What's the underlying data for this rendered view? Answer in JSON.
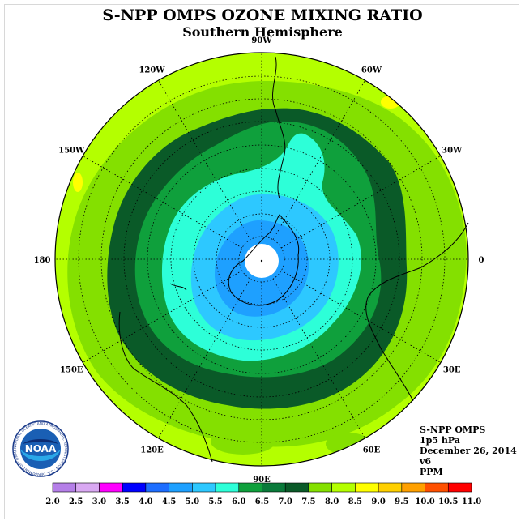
{
  "title": "S-NPP OMPS OZONE MIXING RATIO",
  "subtitle": "Southern Hemisphere",
  "info": {
    "instrument": "S-NPP OMPS",
    "level": "1p5 hPa",
    "date": "December 26, 2014",
    "version": "v6",
    "units": "PPM"
  },
  "logo": {
    "text": "NOAA",
    "ring_text": "NATIONAL OCEANIC AND ATMOSPHERIC ADMINISTRATION · U.S. DEPARTMENT OF COMMERCE"
  },
  "longitude_labels": [
    {
      "text": "90W",
      "angle": -90
    },
    {
      "text": "60W",
      "angle": -60
    },
    {
      "text": "30W",
      "angle": -30
    },
    {
      "text": "0",
      "angle": 0
    },
    {
      "text": "30E",
      "angle": 30
    },
    {
      "text": "60E",
      "angle": 60
    },
    {
      "text": "90E",
      "angle": 90
    },
    {
      "text": "120E",
      "angle": 120
    },
    {
      "text": "150E",
      "angle": 150
    },
    {
      "text": "180",
      "angle": 180
    },
    {
      "text": "150W",
      "angle": 210
    },
    {
      "text": "120W",
      "angle": 240
    }
  ],
  "colorbar": {
    "labels": [
      "2.0",
      "2.5",
      "3.0",
      "3.5",
      "4.0",
      "4.5",
      "5.0",
      "5.5",
      "6.0",
      "6.5",
      "7.0",
      "7.5",
      "8.0",
      "8.5",
      "9.0",
      "9.5",
      "10.0",
      "10.5",
      "11.0"
    ],
    "colors": [
      "#b57fe8",
      "#d9a8f2",
      "#ff00ff",
      "#0000ff",
      "#1e6eff",
      "#1ea0ff",
      "#2dc8ff",
      "#2dffd8",
      "#0fa03c",
      "#0a7a3a",
      "#0a5a28",
      "#84e000",
      "#b4ff00",
      "#ffff00",
      "#ffd000",
      "#ffa000",
      "#ff5000",
      "#ff0000",
      "#7a4a2a"
    ]
  },
  "colors": {
    "pole_white": "#ffffff",
    "band_5_0": "#1ea0ff",
    "band_5_5": "#2dc8ff",
    "band_6_0": "#2dffd8",
    "band_6_5": "#0fa03c",
    "band_7_0": "#0a5a28",
    "band_7_5": "#84e000",
    "band_8_0": "#b4ff00",
    "band_8_5": "#ffff00"
  }
}
